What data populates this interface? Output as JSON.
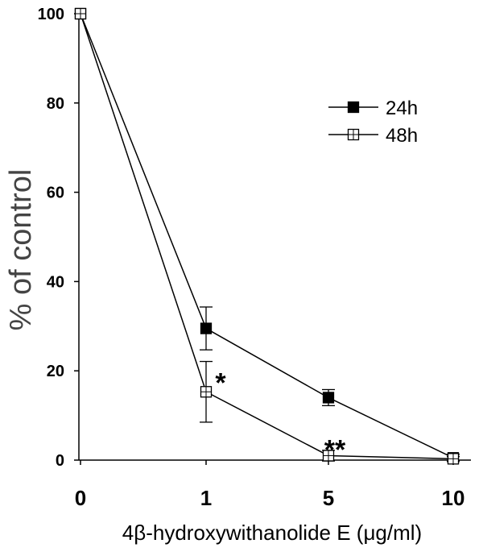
{
  "chart_data": {
    "type": "line",
    "categories": [
      "0",
      "1",
      "5",
      "10"
    ],
    "xlabel": "4β-hydroxywithanolide E (μg/ml)",
    "ylabel": "% of control",
    "ylim": [
      0,
      100
    ],
    "yticks": [
      "0",
      "20",
      "40",
      "60",
      "80",
      "100"
    ],
    "grid": false,
    "legend_position": "top-right",
    "series": [
      {
        "name": "24h",
        "marker": "filled-square",
        "color": "#000000",
        "values": [
          100,
          29.5,
          14,
          0.5
        ],
        "errors": [
          0,
          4.8,
          1.8,
          0.8
        ]
      },
      {
        "name": "48h",
        "marker": "open-square",
        "color": "#000000",
        "values": [
          100,
          15.3,
          1,
          0.3
        ],
        "errors": [
          0,
          6.8,
          1.2,
          0.5
        ]
      }
    ],
    "annotations": [
      {
        "text": "*",
        "category": "1",
        "y": 18.5
      },
      {
        "text": "**",
        "category": "5",
        "y": 3.5
      }
    ]
  }
}
